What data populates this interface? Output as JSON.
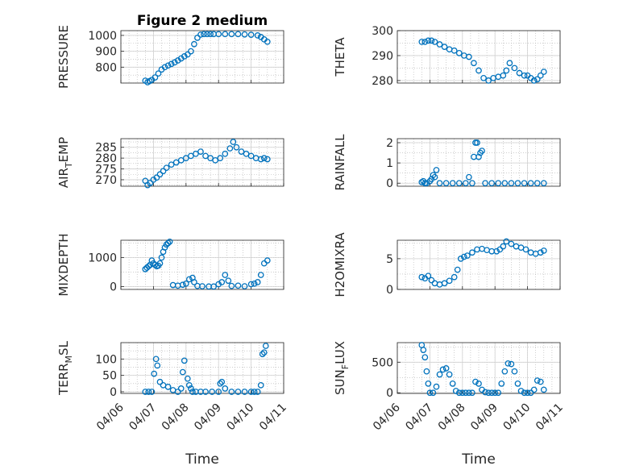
{
  "figure": {
    "title": "Figure 2 medium"
  },
  "colors": {
    "marker": "#0072BD",
    "grid": "#b0b0b0",
    "axis": "#262626"
  },
  "x_axis": {
    "label": "Time",
    "tick_labels": [
      "04/06",
      "04/07",
      "04/08",
      "04/09",
      "04/10",
      "04/11"
    ],
    "range_days": [
      0,
      5
    ]
  },
  "chart_data": [
    {
      "type": "scatter",
      "ylabel": "PRESSURE",
      "ylim": [
        700,
        1030
      ],
      "yticks": [
        800,
        900,
        1000
      ],
      "x": [
        0.75,
        0.82,
        0.88,
        0.95,
        1.05,
        1.15,
        1.25,
        1.35,
        1.45,
        1.55,
        1.65,
        1.75,
        1.85,
        1.95,
        2.05,
        2.15,
        2.25,
        2.35,
        2.45,
        2.55,
        2.65,
        2.75,
        2.85,
        3.0,
        3.2,
        3.4,
        3.6,
        3.8,
        4.0,
        4.2,
        4.3,
        4.4,
        4.5
      ],
      "y": [
        715,
        705,
        712,
        720,
        735,
        760,
        785,
        800,
        810,
        820,
        830,
        842,
        855,
        868,
        880,
        900,
        945,
        985,
        1005,
        1008,
        1008,
        1008,
        1008,
        1008,
        1008,
        1008,
        1008,
        1006,
        1004,
        1000,
        990,
        975,
        960
      ]
    },
    {
      "type": "scatter",
      "ylabel": "THETA",
      "ylim": [
        279,
        300
      ],
      "yticks": [
        280,
        290,
        300
      ],
      "x": [
        0.75,
        0.85,
        0.95,
        1.05,
        1.15,
        1.3,
        1.45,
        1.6,
        1.75,
        1.9,
        2.05,
        2.2,
        2.35,
        2.5,
        2.65,
        2.8,
        2.95,
        3.1,
        3.25,
        3.35,
        3.45,
        3.6,
        3.75,
        3.9,
        4.0,
        4.1,
        4.2,
        4.3,
        4.4,
        4.5
      ],
      "y": [
        295.5,
        295.5,
        296,
        296,
        295.5,
        294.5,
        293.5,
        292.5,
        292,
        291,
        290,
        289.5,
        287,
        284,
        281,
        280,
        281,
        281.5,
        282,
        284,
        287,
        285,
        283,
        282,
        282,
        281,
        280,
        280.5,
        282,
        283.5
      ]
    },
    {
      "type": "scatter",
      "ylabel": "AIR_TEMP",
      "ylim": [
        267,
        289
      ],
      "yticks": [
        270,
        275,
        280,
        285
      ],
      "x": [
        0.75,
        0.82,
        0.9,
        1.0,
        1.1,
        1.2,
        1.3,
        1.4,
        1.55,
        1.7,
        1.85,
        2.0,
        2.15,
        2.3,
        2.45,
        2.6,
        2.75,
        2.9,
        3.05,
        3.2,
        3.35,
        3.45,
        3.55,
        3.7,
        3.85,
        4.0,
        4.15,
        4.3,
        4.4,
        4.5
      ],
      "y": [
        269.5,
        267.5,
        268.5,
        270,
        271,
        272.5,
        274,
        275.5,
        277,
        278,
        279,
        280,
        281,
        282,
        283,
        281,
        280,
        279,
        280,
        282,
        284.5,
        287.5,
        285,
        283,
        282,
        281,
        280,
        279.5,
        280,
        279.5
      ]
    },
    {
      "type": "scatter",
      "ylabel": "RAINFALL",
      "ylim": [
        -0.15,
        2.2
      ],
      "yticks": [
        0,
        1,
        2
      ],
      "x": [
        0.75,
        0.8,
        0.85,
        0.9,
        1.0,
        1.05,
        1.1,
        1.15,
        1.2,
        1.3,
        1.5,
        1.7,
        1.9,
        2.1,
        2.2,
        2.3,
        2.35,
        2.4,
        2.45,
        2.5,
        2.55,
        2.6,
        2.7,
        2.9,
        3.1,
        3.3,
        3.5,
        3.7,
        3.9,
        4.1,
        4.3,
        4.5
      ],
      "y": [
        0.05,
        0.1,
        0,
        0,
        0.1,
        0.2,
        0.4,
        0.3,
        0.65,
        0,
        0,
        0,
        0,
        0,
        0.3,
        0,
        1.3,
        2.0,
        2.0,
        1.3,
        1.5,
        1.6,
        0,
        0,
        0,
        0,
        0,
        0,
        0,
        0,
        0,
        0
      ]
    },
    {
      "type": "scatter",
      "ylabel": "MIXDEPTH",
      "ylim": [
        -100,
        1600
      ],
      "yticks": [
        0,
        1000
      ],
      "x": [
        0.75,
        0.8,
        0.85,
        0.9,
        0.95,
        1.0,
        1.05,
        1.1,
        1.15,
        1.2,
        1.25,
        1.3,
        1.35,
        1.4,
        1.45,
        1.5,
        1.6,
        1.75,
        1.9,
        2.0,
        2.1,
        2.2,
        2.25,
        2.35,
        2.5,
        2.7,
        2.85,
        3.0,
        3.1,
        3.2,
        3.3,
        3.4,
        3.6,
        3.8,
        4.0,
        4.1,
        4.2,
        4.3,
        4.4,
        4.5
      ],
      "y": [
        600,
        650,
        700,
        750,
        900,
        800,
        750,
        700,
        720,
        800,
        1000,
        1200,
        1350,
        1450,
        1500,
        1550,
        50,
        30,
        60,
        100,
        250,
        300,
        150,
        20,
        10,
        0,
        0,
        80,
        150,
        400,
        200,
        20,
        30,
        10,
        80,
        100,
        150,
        400,
        800,
        900
      ]
    },
    {
      "type": "scatter",
      "ylabel": "H2OMIXRA",
      "ylim": [
        0,
        8
      ],
      "yticks": [
        0,
        5
      ],
      "x": [
        0.75,
        0.85,
        0.95,
        1.05,
        1.15,
        1.3,
        1.45,
        1.6,
        1.75,
        1.85,
        1.95,
        2.05,
        2.15,
        2.3,
        2.45,
        2.6,
        2.75,
        2.9,
        3.05,
        3.15,
        3.25,
        3.35,
        3.5,
        3.65,
        3.8,
        3.95,
        4.1,
        4.25,
        4.4,
        4.5
      ],
      "y": [
        2.0,
        1.8,
        2.2,
        1.5,
        1.0,
        0.8,
        1.0,
        1.4,
        2.0,
        3.2,
        5.0,
        5.3,
        5.5,
        6.0,
        6.5,
        6.6,
        6.4,
        6.2,
        6.2,
        6.5,
        7.0,
        7.8,
        7.4,
        7.0,
        6.8,
        6.5,
        6.0,
        5.8,
        6.0,
        6.3
      ]
    },
    {
      "type": "scatter",
      "ylabel": "TERR_MSL",
      "ylim": [
        -5,
        150
      ],
      "yticks": [
        0,
        50,
        100
      ],
      "x": [
        0.75,
        0.85,
        0.95,
        1.02,
        1.08,
        1.12,
        1.2,
        1.3,
        1.45,
        1.6,
        1.75,
        1.85,
        1.9,
        1.95,
        2.05,
        2.1,
        2.15,
        2.2,
        2.3,
        2.45,
        2.6,
        2.8,
        3.0,
        3.05,
        3.1,
        3.2,
        3.4,
        3.6,
        3.8,
        4.0,
        4.1,
        4.2,
        4.3,
        4.35,
        4.4,
        4.45
      ],
      "y": [
        0,
        0,
        0,
        55,
        100,
        80,
        30,
        20,
        15,
        5,
        0,
        10,
        60,
        95,
        40,
        20,
        10,
        0,
        0,
        0,
        0,
        0,
        0,
        25,
        30,
        10,
        0,
        0,
        0,
        0,
        0,
        0,
        20,
        115,
        120,
        140
      ]
    },
    {
      "type": "scatter",
      "ylabel": "SUN_FLUX",
      "ylim": [
        -10,
        820
      ],
      "yticks": [
        0,
        500
      ],
      "x": [
        0.75,
        0.8,
        0.85,
        0.9,
        0.95,
        1.0,
        1.1,
        1.2,
        1.3,
        1.4,
        1.5,
        1.6,
        1.7,
        1.8,
        1.9,
        2.0,
        2.1,
        2.2,
        2.3,
        2.4,
        2.5,
        2.6,
        2.7,
        2.8,
        2.9,
        3.0,
        3.1,
        3.2,
        3.3,
        3.4,
        3.5,
        3.6,
        3.7,
        3.8,
        3.9,
        4.0,
        4.1,
        4.2,
        4.3,
        4.4,
        4.5
      ],
      "y": [
        780,
        700,
        580,
        350,
        150,
        0,
        0,
        100,
        300,
        380,
        400,
        300,
        150,
        30,
        0,
        0,
        0,
        0,
        0,
        180,
        150,
        50,
        10,
        0,
        0,
        0,
        0,
        150,
        350,
        480,
        470,
        350,
        150,
        30,
        0,
        0,
        0,
        50,
        200,
        180,
        50
      ]
    }
  ]
}
